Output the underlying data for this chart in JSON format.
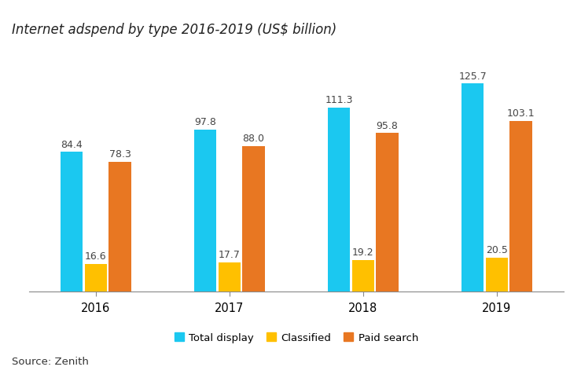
{
  "title": "Internet adspend by type 2016-2019 (US$ billion)",
  "source": "Source: Zenith",
  "years": [
    "2016",
    "2017",
    "2018",
    "2019"
  ],
  "series": {
    "Total display": [
      84.4,
      97.8,
      111.3,
      125.7
    ],
    "Classified": [
      16.6,
      17.7,
      19.2,
      20.5
    ],
    "Paid search": [
      78.3,
      88.0,
      95.8,
      103.1
    ]
  },
  "colors": {
    "Total display": "#1BC8F0",
    "Classified": "#FFC000",
    "Paid search": "#E87722"
  },
  "bar_width": 0.18,
  "ylim": [
    0,
    145
  ],
  "label_fontsize": 9.0,
  "title_fontsize": 12,
  "tick_fontsize": 10.5,
  "legend_fontsize": 9.5,
  "source_fontsize": 9.5,
  "background_color": "#FFFFFF"
}
